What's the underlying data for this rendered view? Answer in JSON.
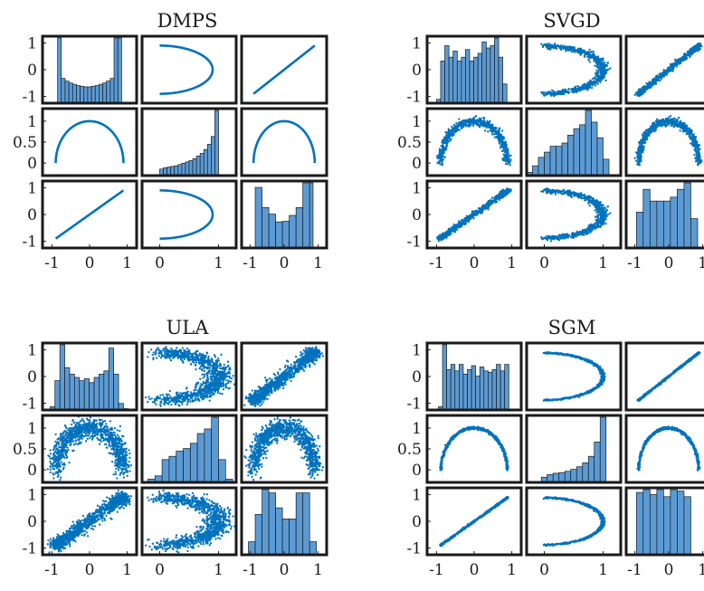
{
  "colors": {
    "marker": "#0072bd",
    "bar_fill": "#5b9bd5",
    "bar_edge": "#1a1a1a",
    "frame": "#1a1a1a",
    "background": "#ffffff"
  },
  "chart_data": [
    {
      "title": "DMPS",
      "type": "scatter-matrix",
      "variables": 3,
      "grid": false,
      "axis_ranges": {
        "var1": [
          -1.25,
          1.25
        ],
        "var2": [
          -0.3,
          1.3
        ],
        "var3": [
          -1.25,
          1.25
        ]
      },
      "x_tick_labels": [
        [
          "-1",
          "0",
          "1"
        ],
        [
          "0",
          "1"
        ],
        [
          "-1",
          "0",
          "1"
        ]
      ],
      "y_tick_labels": [
        [
          "1",
          "0",
          "-1"
        ],
        [
          "1",
          "0.5",
          "0"
        ],
        [
          "1",
          "0",
          "-1"
        ]
      ],
      "histograms": {
        "bin_edges": [
          [
            -0.85,
            -0.75,
            -0.65,
            -0.55,
            -0.45,
            -0.35,
            -0.25,
            -0.15,
            -0.05,
            0.05,
            0.15,
            0.25,
            0.35,
            0.45,
            0.55,
            0.65,
            0.75,
            0.85
          ],
          [
            0,
            0.0625,
            0.125,
            0.1875,
            0.25,
            0.3125,
            0.375,
            0.4375,
            0.5,
            0.5625,
            0.625,
            0.6875,
            0.75,
            0.8125,
            0.875,
            0.9375,
            1.0
          ],
          [
            -0.85,
            -0.65,
            -0.45,
            -0.25,
            -0.05,
            0.15,
            0.35,
            0.55,
            0.75,
            0.85
          ]
        ],
        "counts": [
          [
            1.0,
            0.38,
            0.34,
            0.31,
            0.29,
            0.27,
            0.26,
            0.25,
            0.25,
            0.26,
            0.27,
            0.29,
            0.31,
            0.34,
            0.38,
            1.0,
            1.0
          ],
          [
            0.1,
            0.12,
            0.13,
            0.14,
            0.15,
            0.17,
            0.19,
            0.21,
            0.23,
            0.26,
            0.3,
            0.34,
            0.4,
            0.48,
            0.6,
            1.0
          ],
          [
            0.93,
            0.62,
            0.52,
            0.4,
            0.41,
            0.5,
            0.62,
            1.0,
            1.0
          ]
        ]
      },
      "density": {
        "type": "exact_curve",
        "noise": 0.0,
        "points": 0
      }
    },
    {
      "title": "SVGD",
      "type": "scatter-matrix",
      "variables": 3,
      "grid": false,
      "axis_ranges": {
        "var1": [
          -1.25,
          1.25
        ],
        "var2": [
          -0.3,
          1.3
        ],
        "var3": [
          -1.25,
          1.25
        ]
      },
      "x_tick_labels": [
        [
          "-1",
          "0",
          "1"
        ],
        [
          "0",
          "1"
        ],
        [
          "-1",
          "0",
          "1"
        ]
      ],
      "y_tick_labels": [
        [
          "1",
          "0",
          "-1"
        ],
        [
          "1",
          "0.5",
          "0"
        ],
        [
          "1",
          "0",
          "-1"
        ]
      ],
      "histograms": {
        "bin_edges": [
          [
            -1.0,
            -0.89,
            -0.78,
            -0.67,
            -0.56,
            -0.45,
            -0.34,
            -0.23,
            -0.12,
            -0.01,
            0.1,
            0.21,
            0.32,
            0.43,
            0.54,
            0.65,
            0.76,
            0.87
          ],
          [
            -0.3,
            -0.2,
            -0.1,
            0.0,
            0.1,
            0.2,
            0.3,
            0.4,
            0.5,
            0.6,
            0.7,
            0.8,
            0.9,
            1.0,
            1.1
          ],
          [
            -0.95,
            -0.75,
            -0.55,
            -0.35,
            -0.15,
            0.05,
            0.25,
            0.45,
            0.65,
            0.85
          ]
        ],
        "counts": [
          [
            0.05,
            0.55,
            0.75,
            0.6,
            0.68,
            0.55,
            0.6,
            0.7,
            0.55,
            0.6,
            0.65,
            0.8,
            0.72,
            0.75,
            0.85,
            0.6,
            0.25
          ],
          [
            0.05,
            0.15,
            0.28,
            0.36,
            0.45,
            0.45,
            0.5,
            0.62,
            0.72,
            0.78,
            1.0,
            0.82,
            0.58,
            0.25
          ],
          [
            0.55,
            0.9,
            0.72,
            0.72,
            0.72,
            0.78,
            0.9,
            1.0,
            0.45
          ]
        ]
      },
      "density": {
        "type": "scatter",
        "noise": 0.05,
        "points": 700
      }
    },
    {
      "title": "ULA",
      "type": "scatter-matrix",
      "variables": 3,
      "grid": false,
      "axis_ranges": {
        "var1": [
          -1.25,
          1.25
        ],
        "var2": [
          -0.3,
          1.3
        ],
        "var3": [
          -1.25,
          1.25
        ]
      },
      "x_tick_labels": [
        [
          "-1",
          "0",
          "1"
        ],
        [
          "0",
          "1"
        ],
        [
          "-1",
          "0",
          "1"
        ]
      ],
      "y_tick_labels": [
        [
          "1",
          "0",
          "-1"
        ],
        [
          "1",
          "0.5",
          "0"
        ],
        [
          "1",
          "0",
          "-1"
        ]
      ],
      "histograms": {
        "bin_edges": [
          [
            -1.05,
            -0.92,
            -0.79,
            -0.66,
            -0.53,
            -0.4,
            -0.27,
            -0.14,
            -0.01,
            0.12,
            0.25,
            0.38,
            0.51,
            0.64,
            0.77,
            0.9,
            1.03
          ],
          [
            -0.2,
            -0.08,
            0.04,
            0.16,
            0.28,
            0.4,
            0.52,
            0.64,
            0.76,
            0.88,
            1.0,
            1.12,
            1.24
          ],
          [
            -1.05,
            -0.85,
            -0.65,
            -0.45,
            -0.25,
            -0.05,
            0.15,
            0.35,
            0.55,
            0.75,
            0.95
          ]
        ],
        "counts": [
          [
            0.05,
            0.45,
            1.0,
            0.65,
            0.55,
            0.5,
            0.45,
            0.48,
            0.42,
            0.5,
            0.55,
            0.6,
            0.95,
            0.55,
            0.1,
            0.02
          ],
          [
            0.05,
            0.1,
            0.35,
            0.4,
            0.48,
            0.52,
            0.6,
            0.75,
            0.82,
            1.0,
            0.35,
            0.05
          ],
          [
            0.2,
            0.62,
            1.0,
            0.95,
            0.72,
            0.55,
            0.55,
            0.95,
            0.95,
            0.2
          ]
        ]
      },
      "density": {
        "type": "scatter",
        "noise": 0.12,
        "points": 1100
      }
    },
    {
      "title": "SGM",
      "type": "scatter-matrix",
      "variables": 3,
      "grid": false,
      "axis_ranges": {
        "var1": [
          -1.25,
          1.25
        ],
        "var2": [
          -0.3,
          1.3
        ],
        "var3": [
          -1.25,
          1.25
        ]
      },
      "x_tick_labels": [
        [
          "-1",
          "0",
          "1"
        ],
        [
          "0",
          "1"
        ],
        [
          "-1",
          "0",
          "1"
        ]
      ],
      "y_tick_labels": [
        [
          "1",
          "0",
          "-1"
        ],
        [
          "1",
          "0.5",
          "0"
        ],
        [
          "1",
          "0",
          "-1"
        ]
      ],
      "histograms": {
        "bin_edges": [
          [
            -0.95,
            -0.84,
            -0.73,
            -0.62,
            -0.51,
            -0.4,
            -0.29,
            -0.18,
            -0.07,
            0.04,
            0.15,
            0.26,
            0.37,
            0.48,
            0.59,
            0.7,
            0.81,
            0.92
          ],
          [
            -0.05,
            0.05,
            0.15,
            0.25,
            0.35,
            0.45,
            0.55,
            0.65,
            0.75,
            0.85,
            0.95,
            1.05
          ],
          [
            -0.95,
            -0.75,
            -0.55,
            -0.35,
            -0.15,
            0.05,
            0.25,
            0.45,
            0.65,
            0.85
          ]
        ],
        "counts": [
          [
            0.05,
            1.0,
            0.62,
            0.7,
            0.6,
            0.7,
            0.55,
            0.62,
            0.68,
            0.52,
            0.66,
            0.6,
            0.58,
            0.62,
            0.7,
            0.6,
            0.7
          ],
          [
            0.08,
            0.12,
            0.14,
            0.15,
            0.17,
            0.2,
            0.24,
            0.3,
            0.4,
            0.62,
            1.0
          ],
          [
            0.88,
            0.92,
            0.85,
            0.92,
            0.82,
            0.92,
            0.9,
            0.82,
            0.0
          ]
        ]
      },
      "density": {
        "type": "scatter",
        "noise": 0.015,
        "points": 700
      }
    }
  ]
}
